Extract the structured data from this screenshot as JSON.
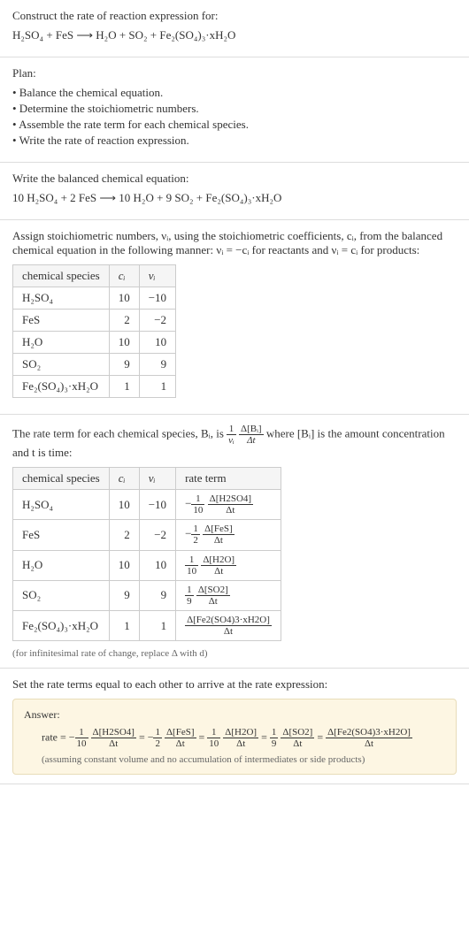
{
  "intro": {
    "line1": "Construct the rate of reaction expression for:",
    "eq": "H₂SO₄ + FeS ⟶ H₂O + SO₂ + Fe₂(SO₄)₃·xH₂O"
  },
  "plan": {
    "heading": "Plan:",
    "items": [
      "• Balance the chemical equation.",
      "• Determine the stoichiometric numbers.",
      "• Assemble the rate term for each chemical species.",
      "• Write the rate of reaction expression."
    ]
  },
  "balanced": {
    "heading": "Write the balanced chemical equation:",
    "eq": "10 H₂SO₄ + 2 FeS ⟶ 10 H₂O + 9 SO₂ + Fe₂(SO₄)₃·xH₂O"
  },
  "stoich": {
    "text_a": "Assign stoichiometric numbers, νᵢ, using the stoichiometric coefficients, cᵢ, from the balanced chemical equation in the following manner: νᵢ = −cᵢ for reactants and νᵢ = cᵢ for products:",
    "headers": [
      "chemical species",
      "cᵢ",
      "νᵢ"
    ],
    "rows": [
      [
        "H₂SO₄",
        "10",
        "−10"
      ],
      [
        "FeS",
        "2",
        "−2"
      ],
      [
        "H₂O",
        "10",
        "10"
      ],
      [
        "SO₂",
        "9",
        "9"
      ],
      [
        "Fe₂(SO₄)₃·xH₂O",
        "1",
        "1"
      ]
    ]
  },
  "rateterm": {
    "text_a": "The rate term for each chemical species, Bᵢ, is ",
    "text_b": " where [Bᵢ] is the amount concentration and t is time:",
    "frac1_n": "1",
    "frac1_d": "νᵢ",
    "frac2_n": "Δ[Bᵢ]",
    "frac2_d": "Δt",
    "headers": [
      "chemical species",
      "cᵢ",
      "νᵢ",
      "rate term"
    ],
    "rows": [
      {
        "sp": "H₂SO₄",
        "c": "10",
        "v": "−10",
        "sign": "−",
        "cn": "1",
        "cd": "10",
        "bn": "Δ[H2SO4]",
        "bd": "Δt"
      },
      {
        "sp": "FeS",
        "c": "2",
        "v": "−2",
        "sign": "−",
        "cn": "1",
        "cd": "2",
        "bn": "Δ[FeS]",
        "bd": "Δt"
      },
      {
        "sp": "H₂O",
        "c": "10",
        "v": "10",
        "sign": "",
        "cn": "1",
        "cd": "10",
        "bn": "Δ[H2O]",
        "bd": "Δt"
      },
      {
        "sp": "SO₂",
        "c": "9",
        "v": "9",
        "sign": "",
        "cn": "1",
        "cd": "9",
        "bn": "Δ[SO2]",
        "bd": "Δt"
      },
      {
        "sp": "Fe₂(SO₄)₃·xH₂O",
        "c": "1",
        "v": "1",
        "sign": "",
        "cn": "",
        "cd": "",
        "bn": "Δ[Fe2(SO4)3·xH2O]",
        "bd": "Δt"
      }
    ],
    "note": "(for infinitesimal rate of change, replace Δ with d)"
  },
  "final": {
    "heading": "Set the rate terms equal to each other to arrive at the rate expression:",
    "answer_label": "Answer:",
    "rate_prefix": "rate = −",
    "terms": [
      {
        "cn": "1",
        "cd": "10",
        "bn": "Δ[H2SO4]",
        "bd": "Δt",
        "post": " = −"
      },
      {
        "cn": "1",
        "cd": "2",
        "bn": "Δ[FeS]",
        "bd": "Δt",
        "post": " = "
      },
      {
        "cn": "1",
        "cd": "10",
        "bn": "Δ[H2O]",
        "bd": "Δt",
        "post": " = "
      },
      {
        "cn": "1",
        "cd": "9",
        "bn": "Δ[SO2]",
        "bd": "Δt",
        "post": " = "
      },
      {
        "cn": "",
        "cd": "",
        "bn": "Δ[Fe2(SO4)3·xH2O]",
        "bd": "Δt",
        "post": ""
      }
    ],
    "aside": "(assuming constant volume and no accumulation of intermediates or side products)"
  },
  "colors": {
    "border": "#dddddd",
    "table_border": "#cccccc",
    "answer_bg": "#fdf6e3",
    "answer_border": "#e8dcb8"
  }
}
